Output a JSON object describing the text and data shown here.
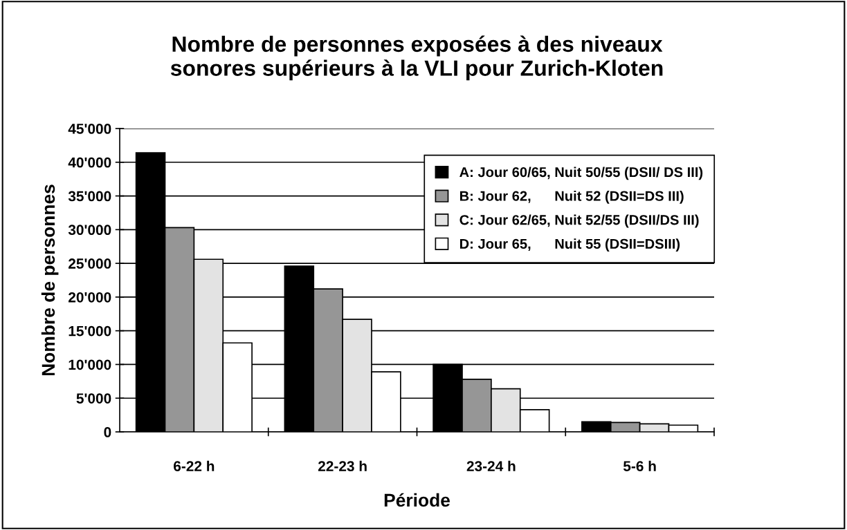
{
  "chart_data": {
    "type": "bar",
    "title": "Nombre de personnes exposées à des niveaux\nsonores supérieurs à la VLI pour Zurich-Kloten",
    "xlabel": "Période",
    "ylabel": "Nombre de personnes",
    "categories": [
      "6-22 h",
      "22-23 h",
      "23-24 h",
      "5-6 h"
    ],
    "series": [
      {
        "name": "A: Jour 60/65, Nuit 50/55 (DSII/ DS III)",
        "color": "#000000",
        "values": [
          41400,
          24600,
          10000,
          1500
        ]
      },
      {
        "name": "B: Jour 62,      Nuit 52 (DSII=DS III)",
        "color": "#969696",
        "values": [
          30300,
          21200,
          7800,
          1400
        ]
      },
      {
        "name": "C: Jour 62/65, Nuit 52/55 (DSII/DS III)",
        "color": "#e3e3e3",
        "values": [
          25600,
          16700,
          6400,
          1200
        ]
      },
      {
        "name": "D: Jour 65,      Nuit 55 (DSII=DSIII)",
        "color": "#ffffff",
        "values": [
          13200,
          8900,
          3300,
          1000
        ]
      }
    ],
    "ylim": [
      0,
      45000
    ],
    "yticks": [
      {
        "value": 0,
        "label": "0"
      },
      {
        "value": 5000,
        "label": "5'000"
      },
      {
        "value": 10000,
        "label": "10'000"
      },
      {
        "value": 15000,
        "label": "15'000"
      },
      {
        "value": 20000,
        "label": "20'000"
      },
      {
        "value": 25000,
        "label": "25'000"
      },
      {
        "value": 30000,
        "label": "30'000"
      },
      {
        "value": 35000,
        "label": "35'000"
      },
      {
        "value": 40000,
        "label": "40'000"
      },
      {
        "value": 45000,
        "label": "45'000"
      }
    ],
    "grid": "y",
    "legend": "top right"
  }
}
